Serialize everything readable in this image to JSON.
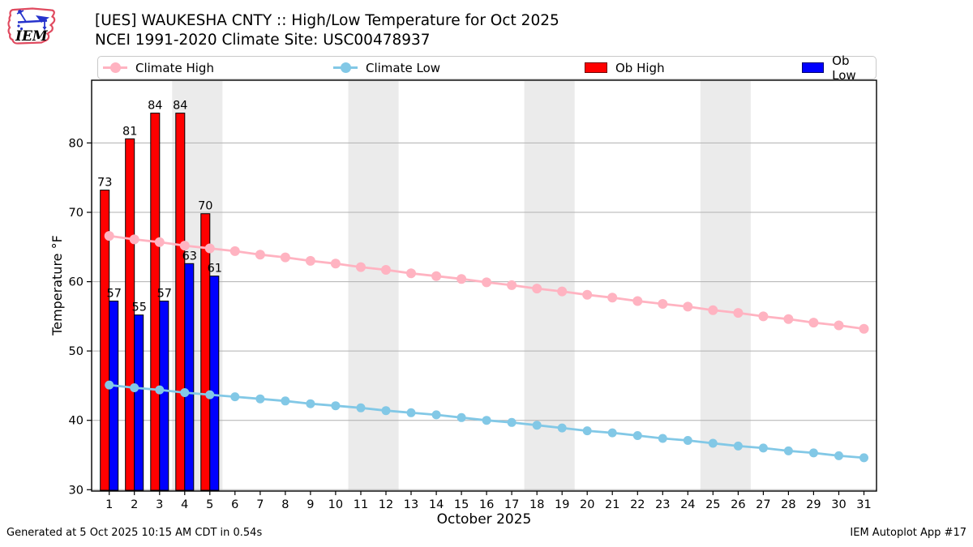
{
  "header": {
    "logo_text": "IEM",
    "title_line1": "[UES] WAUKESHA CNTY :: High/Low Temperature for Oct 2025",
    "title_line2": "NCEI 1991-2020 Climate Site: USC00478937"
  },
  "legend": {
    "items": [
      {
        "label": "Climate High",
        "type": "line",
        "color": "#ffb3c1"
      },
      {
        "label": "Climate Low",
        "type": "line",
        "color": "#82c8e6"
      },
      {
        "label": "Ob High",
        "type": "patch",
        "color": "#ff0000"
      },
      {
        "label": "Ob Low",
        "type": "patch",
        "color": "#0000ff"
      }
    ]
  },
  "footer": {
    "left": "Generated at 5 Oct 2025 10:15 AM CDT in 0.54s",
    "right": "IEM Autoplot App #17"
  },
  "chart_data": {
    "type": "bar",
    "title": "[UES] WAUKESHA CNTY :: High/Low Temperature for Oct 2025",
    "subtitle": "NCEI 1991-2020 Climate Site: USC00478937",
    "xlabel": "October 2025",
    "ylabel": "Temperature °F",
    "xlim": [
      0.3,
      31.5
    ],
    "ylim": [
      29.8,
      89.05
    ],
    "yticks": [
      30,
      40,
      50,
      60,
      70,
      80
    ],
    "xticks": [
      1,
      2,
      3,
      4,
      5,
      6,
      7,
      8,
      9,
      10,
      11,
      12,
      13,
      14,
      15,
      16,
      17,
      18,
      19,
      20,
      21,
      22,
      23,
      24,
      25,
      26,
      27,
      28,
      29,
      30,
      31
    ],
    "grid": "horizontal-only",
    "legend_position": "top-row",
    "weekend_bands": [
      [
        3.5,
        5.5
      ],
      [
        10.5,
        12.5
      ],
      [
        17.5,
        19.5
      ],
      [
        24.5,
        26.5
      ]
    ],
    "days_observed": [
      1,
      2,
      3,
      4,
      5
    ],
    "ob_high": {
      "labels": [
        73,
        81,
        84,
        84,
        70
      ],
      "values": [
        73.2,
        80.6,
        84.3,
        84.3,
        69.8
      ]
    },
    "ob_low": {
      "labels": [
        57,
        55,
        57,
        63,
        61
      ],
      "values": [
        57.2,
        55.2,
        57.2,
        62.6,
        60.8
      ]
    },
    "climate_high": [
      66.6,
      66.1,
      65.7,
      65.2,
      64.8,
      64.4,
      63.9,
      63.5,
      63.0,
      62.6,
      62.1,
      61.7,
      61.2,
      60.8,
      60.4,
      59.9,
      59.5,
      59.0,
      58.6,
      58.1,
      57.7,
      57.2,
      56.8,
      56.4,
      55.9,
      55.5,
      55.0,
      54.6,
      54.1,
      53.7,
      53.2
    ],
    "climate_low": [
      45.1,
      44.7,
      44.4,
      44.0,
      43.7,
      43.4,
      43.1,
      42.8,
      42.4,
      42.1,
      41.8,
      41.4,
      41.1,
      40.8,
      40.4,
      40.0,
      39.7,
      39.3,
      38.9,
      38.5,
      38.2,
      37.8,
      37.4,
      37.1,
      36.7,
      36.3,
      36.0,
      35.6,
      35.3,
      34.9,
      34.6
    ],
    "colors": {
      "climate_high": "#ffb3c1",
      "climate_low": "#82c8e6",
      "ob_high": "#ff0000",
      "ob_low": "#0000ff",
      "weekend_band": "#ebebeb",
      "grid": "#b0b0b0"
    }
  }
}
